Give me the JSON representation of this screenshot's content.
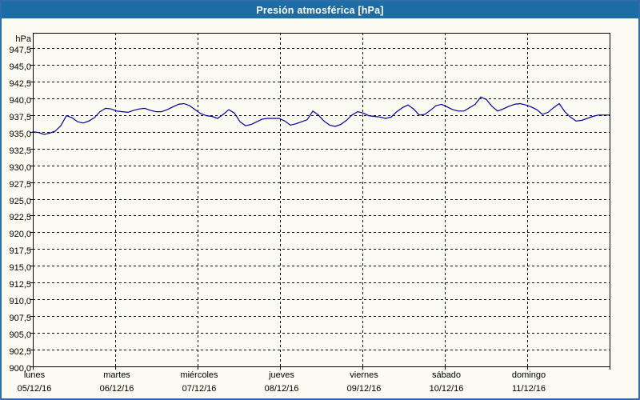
{
  "window": {
    "title": "Presión atmosférica [hPa]",
    "title_bar_color": "#1E6CA5",
    "border_color": "#2E6DA8",
    "background_color": "#FBFBF2"
  },
  "chart_data": {
    "type": "line",
    "title": "Presión atmosférica [hPa]",
    "unit_label": "hPa",
    "ylabel": "hPa",
    "xlabel": "",
    "ylim": [
      900.0,
      947.5
    ],
    "y_tick_step": 2.5,
    "y_tick_labels": [
      "947,5",
      "945,0",
      "942,5",
      "940,0",
      "937,5",
      "935,0",
      "932,5",
      "930,0",
      "927,5",
      "925,0",
      "922,5",
      "920,0",
      "917,5",
      "915,0",
      "912,5",
      "910,0",
      "907,5",
      "905,0",
      "902,5",
      "900,0"
    ],
    "grid": "dashed",
    "legend": "none",
    "x_categories": [
      {
        "day": "lunes",
        "date": "05/12/16"
      },
      {
        "day": "martes",
        "date": "06/12/16"
      },
      {
        "day": "miércoles",
        "date": "07/12/16"
      },
      {
        "day": "jueves",
        "date": "08/12/16"
      },
      {
        "day": "viernes",
        "date": "09/12/16"
      },
      {
        "day": "sábado",
        "date": "10/12/16"
      },
      {
        "day": "domingo",
        "date": "11/12/16"
      }
    ],
    "series": [
      {
        "name": "Presión atmosférica",
        "color": "#0000A0",
        "values": [
          935.0,
          934.9,
          934.6,
          934.8,
          935.1,
          935.9,
          937.4,
          937.1,
          936.5,
          936.3,
          936.6,
          937.1,
          938.0,
          938.5,
          938.4,
          938.1,
          938.0,
          937.9,
          938.2,
          938.4,
          938.5,
          938.2,
          938.0,
          938.0,
          938.3,
          938.7,
          939.1,
          939.2,
          938.9,
          938.3,
          937.7,
          937.4,
          937.3,
          937.0,
          937.6,
          938.3,
          937.8,
          936.5,
          935.9,
          936.1,
          936.5,
          936.9,
          937.0,
          937.0,
          937.0,
          936.6,
          936.0,
          936.2,
          936.5,
          936.8,
          938.1,
          937.5,
          936.6,
          936.0,
          935.8,
          936.1,
          936.7,
          937.5,
          938.0,
          937.8,
          937.4,
          937.3,
          937.2,
          937.0,
          937.2,
          938.0,
          938.6,
          939.0,
          938.4,
          937.5,
          937.6,
          938.2,
          938.9,
          939.1,
          938.7,
          938.3,
          938.1,
          938.1,
          938.6,
          939.1,
          940.2,
          939.8,
          938.8,
          938.1,
          938.4,
          938.8,
          939.1,
          939.2,
          939.0,
          938.7,
          938.3,
          937.6,
          937.9,
          938.6,
          939.2,
          938.0,
          937.2,
          936.6,
          936.7,
          937.0,
          937.3,
          937.5,
          937.5,
          937.5
        ]
      }
    ]
  }
}
